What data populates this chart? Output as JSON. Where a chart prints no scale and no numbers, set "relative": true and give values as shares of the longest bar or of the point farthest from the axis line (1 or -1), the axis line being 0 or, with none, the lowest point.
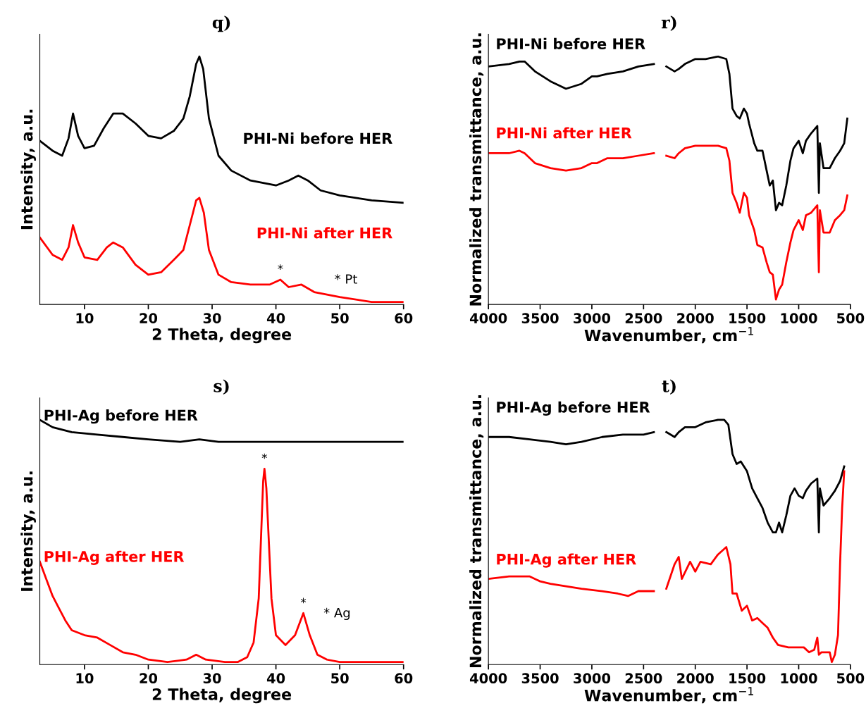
{
  "chart_data": [
    {
      "type": "line",
      "title": "q)",
      "xlabel": "2 Theta, degree",
      "ylabel": "Intensity, a.u.",
      "relative": true,
      "xlim": [
        3,
        60
      ],
      "xticks": [
        10,
        20,
        30,
        40,
        50,
        60
      ],
      "legend": false,
      "grid": false,
      "series": [
        {
          "name": "PHI-Ni before HER",
          "color": "#000000",
          "x": [
            3,
            5,
            6.5,
            7.5,
            8.2,
            9,
            10,
            11.5,
            13,
            14.5,
            16,
            18,
            20,
            22,
            24,
            25.5,
            26.5,
            27.5,
            28,
            28.6,
            29.5,
            31,
            33,
            36,
            40,
            42,
            43.5,
            45,
            47,
            50,
            55,
            60
          ],
          "values": [
            0.66,
            0.62,
            0.6,
            0.67,
            0.77,
            0.68,
            0.63,
            0.64,
            0.71,
            0.77,
            0.77,
            0.73,
            0.68,
            0.67,
            0.7,
            0.75,
            0.84,
            0.97,
            1.0,
            0.95,
            0.75,
            0.6,
            0.54,
            0.5,
            0.48,
            0.5,
            0.52,
            0.5,
            0.46,
            0.44,
            0.42,
            0.41
          ]
        },
        {
          "name": "PHI-Ni after HER",
          "color": "#ff0000",
          "x": [
            3,
            5,
            6.5,
            7.5,
            8.2,
            9,
            10,
            12,
            13.5,
            14.5,
            16,
            18,
            20,
            22,
            24,
            25.5,
            26.5,
            27.5,
            28,
            28.7,
            29.5,
            31,
            33,
            36,
            39,
            40.7,
            42,
            44,
            46,
            50,
            55,
            60
          ],
          "values": [
            0.27,
            0.2,
            0.18,
            0.23,
            0.32,
            0.25,
            0.19,
            0.18,
            0.23,
            0.25,
            0.23,
            0.16,
            0.12,
            0.13,
            0.18,
            0.22,
            0.32,
            0.42,
            0.43,
            0.37,
            0.22,
            0.12,
            0.09,
            0.08,
            0.08,
            0.1,
            0.07,
            0.08,
            0.05,
            0.03,
            0.01,
            0.01
          ]
        }
      ],
      "annotations": [
        {
          "text": "*",
          "x": 40.7,
          "y": 0.1
        },
        "* Pt"
      ]
    },
    {
      "type": "line",
      "title": "r)",
      "xlabel": "Wavenumber, cm$^{−1}$",
      "ylabel": "Normalized transmittance, a.u.",
      "relative": true,
      "xlim": [
        4000,
        500
      ],
      "xticks": [
        4000,
        3500,
        3000,
        2500,
        2000,
        1500,
        1000,
        500
      ],
      "legend": false,
      "grid": false,
      "series": [
        {
          "name": "PHI-Ni before HER",
          "color": "#000000",
          "x": [
            4000,
            3800,
            3700,
            3650,
            3550,
            3400,
            3250,
            3100,
            3000,
            2950,
            2850,
            2700,
            2550,
            2400,
            2330,
            2280,
            2200,
            2160,
            2100,
            2000,
            1900,
            1780,
            1700,
            1670,
            1640,
            1600,
            1570,
            1530,
            1500,
            1480,
            1430,
            1400,
            1350,
            1310,
            1280,
            1250,
            1220,
            1190,
            1160,
            1120,
            1080,
            1050,
            1000,
            960,
            930,
            880,
            820,
            805,
            795,
            760,
            700,
            650,
            600,
            560,
            530
          ],
          "values": [
            0.96,
            0.97,
            0.98,
            0.98,
            0.94,
            0.9,
            0.87,
            0.89,
            0.92,
            0.92,
            0.93,
            0.94,
            0.96,
            0.97,
            null,
            0.96,
            0.94,
            0.95,
            0.97,
            0.99,
            0.99,
            1.0,
            0.99,
            0.93,
            0.79,
            0.76,
            0.75,
            0.79,
            0.77,
            0.73,
            0.65,
            0.62,
            0.62,
            0.54,
            0.48,
            0.5,
            0.38,
            0.41,
            0.4,
            0.48,
            0.58,
            0.63,
            0.66,
            0.61,
            0.66,
            0.69,
            0.72,
            0.45,
            0.65,
            0.55,
            0.55,
            0.59,
            0.62,
            0.65,
            0.75
          ]
        },
        {
          "name": "PHI-Ni after HER",
          "color": "#ff0000",
          "x": [
            4000,
            3800,
            3700,
            3650,
            3550,
            3400,
            3250,
            3100,
            3000,
            2950,
            2850,
            2700,
            2550,
            2400,
            2330,
            2280,
            2200,
            2160,
            2100,
            2000,
            1900,
            1780,
            1700,
            1670,
            1640,
            1600,
            1570,
            1530,
            1500,
            1480,
            1430,
            1400,
            1350,
            1310,
            1280,
            1250,
            1220,
            1190,
            1160,
            1120,
            1080,
            1050,
            1000,
            960,
            930,
            880,
            820,
            805,
            795,
            760,
            700,
            650,
            600,
            560,
            530
          ],
          "values": [
            0.61,
            0.61,
            0.62,
            0.61,
            0.57,
            0.55,
            0.54,
            0.55,
            0.57,
            0.57,
            0.59,
            0.59,
            0.6,
            0.61,
            null,
            0.6,
            0.59,
            0.61,
            0.63,
            0.64,
            0.64,
            0.64,
            0.63,
            0.58,
            0.45,
            0.41,
            0.37,
            0.45,
            0.43,
            0.36,
            0.3,
            0.24,
            0.23,
            0.17,
            0.13,
            0.12,
            0.02,
            0.06,
            0.08,
            0.17,
            0.25,
            0.3,
            0.34,
            0.3,
            0.36,
            0.37,
            0.4,
            0.13,
            0.38,
            0.29,
            0.29,
            0.34,
            0.36,
            0.38,
            0.44
          ]
        }
      ]
    },
    {
      "type": "line",
      "title": "s)",
      "xlabel": "2 Theta, degree",
      "ylabel": "Intensity, a.u.",
      "relative": true,
      "xlim": [
        3,
        60
      ],
      "xticks": [
        10,
        20,
        30,
        40,
        50,
        60
      ],
      "legend": false,
      "grid": false,
      "series": [
        {
          "name": "PHI-Ag before HER",
          "color": "#000000",
          "x": [
            3,
            5,
            8,
            12,
            16,
            20,
            25,
            28,
            31,
            40,
            50,
            60
          ],
          "values": [
            1.0,
            0.97,
            0.95,
            0.94,
            0.93,
            0.92,
            0.91,
            0.92,
            0.91,
            0.91,
            0.91,
            0.91
          ]
        },
        {
          "name": "PHI-Ag after HER",
          "color": "#ff0000",
          "x": [
            3,
            4,
            5,
            6,
            7,
            8,
            9,
            10,
            12,
            14,
            16,
            18,
            20,
            23,
            26,
            27.5,
            29,
            32,
            34,
            35.5,
            36.5,
            37.3,
            38,
            38.2,
            38.5,
            39.3,
            40,
            41.5,
            43,
            44.3,
            45.3,
            46.5,
            48,
            50,
            55,
            60
          ],
          "values": [
            0.42,
            0.35,
            0.28,
            0.23,
            0.18,
            0.14,
            0.13,
            0.12,
            0.11,
            0.08,
            0.05,
            0.04,
            0.02,
            0.01,
            0.02,
            0.04,
            0.02,
            0.01,
            0.01,
            0.03,
            0.09,
            0.27,
            0.75,
            0.8,
            0.72,
            0.27,
            0.12,
            0.08,
            0.12,
            0.21,
            0.12,
            0.04,
            0.02,
            0.01,
            0.01,
            0.01
          ]
        }
      ],
      "annotations": [
        {
          "text": "*",
          "x": 38.2,
          "y": 0.8
        },
        {
          "text": "*",
          "x": 44.3,
          "y": 0.21
        },
        "* Ag"
      ]
    },
    {
      "type": "line",
      "title": "t)",
      "xlabel": "Wavenumber, cm$^{−1}$",
      "ylabel": "Normalized transmittance, a.u.",
      "relative": true,
      "xlim": [
        4000,
        500
      ],
      "xticks": [
        4000,
        3500,
        3000,
        2500,
        2000,
        1500,
        1000,
        500
      ],
      "legend": false,
      "grid": false,
      "series": [
        {
          "name": "PHI-Ag before HER",
          "color": "#000000",
          "x": [
            4000,
            3800,
            3600,
            3400,
            3250,
            3100,
            2900,
            2700,
            2500,
            2400,
            2330,
            2280,
            2200,
            2160,
            2100,
            2000,
            1900,
            1780,
            1720,
            1680,
            1640,
            1600,
            1560,
            1500,
            1450,
            1400,
            1350,
            1300,
            1250,
            1220,
            1190,
            1160,
            1120,
            1080,
            1040,
            1000,
            960,
            930,
            880,
            820,
            805,
            795,
            760,
            700,
            650,
            600,
            560
          ],
          "values": [
            0.93,
            0.93,
            0.92,
            0.91,
            0.9,
            0.91,
            0.93,
            0.94,
            0.94,
            0.95,
            null,
            0.95,
            0.93,
            0.95,
            0.97,
            0.97,
            0.99,
            1.0,
            1.0,
            0.98,
            0.86,
            0.82,
            0.83,
            0.79,
            0.72,
            0.68,
            0.64,
            0.58,
            0.54,
            0.54,
            0.58,
            0.54,
            0.61,
            0.69,
            0.72,
            0.69,
            0.68,
            0.71,
            0.74,
            0.76,
            0.54,
            0.72,
            0.65,
            0.68,
            0.71,
            0.75,
            0.81
          ]
        },
        {
          "name": "PHI-Ag after HER",
          "color": "#ff0000",
          "x": [
            4000,
            3800,
            3700,
            3600,
            3500,
            3400,
            3250,
            3100,
            2900,
            2750,
            2650,
            2550,
            2400,
            2330,
            2280,
            2200,
            2160,
            2130,
            2050,
            2000,
            1950,
            1850,
            1780,
            1700,
            1660,
            1640,
            1600,
            1550,
            1500,
            1450,
            1400,
            1350,
            1300,
            1250,
            1200,
            1100,
            1000,
            950,
            900,
            850,
            820,
            805,
            780,
            750,
            700,
            680,
            650,
            620,
            600,
            580,
            560
          ],
          "values": [
            0.35,
            0.36,
            0.36,
            0.36,
            0.34,
            0.33,
            0.32,
            0.31,
            0.3,
            0.29,
            0.28,
            0.3,
            0.3,
            null,
            0.31,
            0.41,
            0.44,
            0.35,
            0.42,
            0.38,
            0.42,
            0.41,
            0.45,
            0.48,
            0.41,
            0.29,
            0.29,
            0.22,
            0.24,
            0.18,
            0.19,
            0.17,
            0.15,
            0.11,
            0.08,
            0.07,
            0.07,
            0.07,
            0.05,
            0.06,
            0.11,
            0.04,
            0.05,
            0.05,
            0.05,
            0.01,
            0.04,
            0.12,
            0.41,
            0.64,
            0.79
          ]
        }
      ]
    }
  ]
}
